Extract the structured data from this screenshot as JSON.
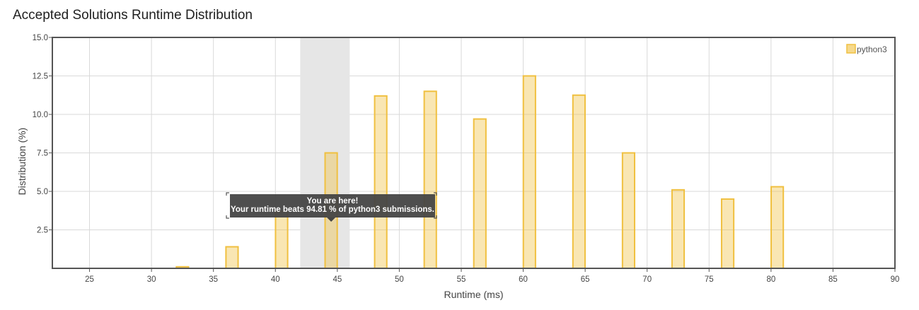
{
  "page": {
    "title": "Accepted Solutions Runtime Distribution"
  },
  "chart_data": {
    "type": "bar",
    "title": "Accepted Solutions Runtime Distribution",
    "xlabel": "Runtime (ms)",
    "ylabel": "Distribution (%)",
    "xlim": [
      22,
      90
    ],
    "ylim": [
      0,
      15
    ],
    "x_ticks": [
      "25",
      "30",
      "35",
      "40",
      "45",
      "50",
      "55",
      "60",
      "65",
      "70",
      "75",
      "80",
      "85",
      "90"
    ],
    "y_ticks": [
      "2.5",
      "5.0",
      "7.5",
      "10.0",
      "12.5",
      "15.0"
    ],
    "grid": true,
    "legend_position": "top-right",
    "series": [
      {
        "name": "python3",
        "color": "#f0c040",
        "x": [
          32.5,
          36.5,
          40.5,
          44.5,
          48.5,
          52.5,
          56.5,
          60.5,
          64.5,
          68.5,
          72.5,
          76.5,
          80.5
        ],
        "values": [
          0.1,
          1.4,
          3.7,
          7.5,
          11.2,
          11.5,
          9.7,
          12.5,
          11.25,
          7.5,
          5.1,
          4.5,
          5.3
        ]
      }
    ],
    "highlight_range": [
      42,
      46
    ],
    "tooltip": {
      "title": "You are here!",
      "text": "Your runtime beats 94.81 % of python3 submissions."
    }
  }
}
